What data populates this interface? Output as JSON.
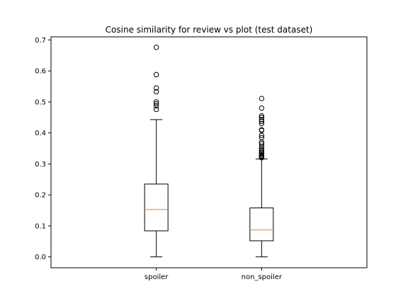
{
  "chart_data": {
    "type": "box",
    "title": "Cosine similarity for review vs plot (test dataset)",
    "xlabel": "",
    "ylabel": "",
    "ylim": [
      -0.035,
      0.71
    ],
    "yticks": [
      0.0,
      0.1,
      0.2,
      0.3,
      0.4,
      0.5,
      0.6,
      0.7
    ],
    "ytick_labels": [
      "0.0",
      "0.1",
      "0.2",
      "0.3",
      "0.4",
      "0.5",
      "0.6",
      "0.7"
    ],
    "grid": false,
    "categories": [
      "spoiler",
      "non_spoiler"
    ],
    "boxes": [
      {
        "category": "spoiler",
        "whisker_low": 0.0,
        "q1": 0.084,
        "median": 0.153,
        "q3": 0.235,
        "whisker_high": 0.443,
        "outliers": [
          0.676,
          0.588,
          0.545,
          0.533,
          0.5,
          0.494,
          0.487,
          0.476
        ]
      },
      {
        "category": "non_spoiler",
        "whisker_low": 0.0,
        "q1": 0.052,
        "median": 0.087,
        "q3": 0.158,
        "whisker_high": 0.316,
        "outliers": [
          0.511,
          0.48,
          0.455,
          0.45,
          0.443,
          0.437,
          0.43,
          0.41,
          0.408,
          0.392,
          0.385,
          0.37,
          0.365,
          0.357,
          0.35,
          0.345,
          0.34,
          0.336,
          0.332,
          0.328,
          0.325,
          0.322,
          0.32
        ]
      }
    ],
    "colors": {
      "box": "#000000",
      "median": "#ff7f0e",
      "outlier_edge": "#000000"
    }
  }
}
